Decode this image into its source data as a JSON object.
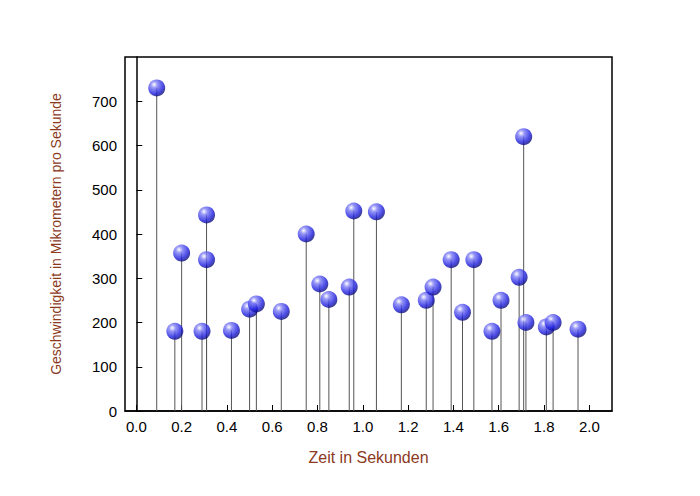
{
  "chart_data": {
    "type": "stem",
    "x_label": "Zeit in Sekunden",
    "y_label": "Geschwindigkeit in Mikrometern pro Sekunde",
    "x": [
      0.09,
      0.17,
      0.2,
      0.29,
      0.31,
      0.31,
      0.42,
      0.5,
      0.53,
      0.64,
      0.75,
      0.81,
      0.85,
      0.94,
      0.96,
      1.06,
      1.17,
      1.28,
      1.31,
      1.39,
      1.44,
      1.49,
      1.57,
      1.61,
      1.69,
      1.71,
      1.72,
      1.81,
      1.84,
      1.95
    ],
    "values": [
      730,
      180,
      357,
      180,
      443,
      342,
      182,
      230,
      242,
      225,
      400,
      287,
      252,
      280,
      452,
      450,
      240,
      250,
      280,
      342,
      223,
      342,
      180,
      250,
      302,
      620,
      200,
      190,
      200,
      185
    ],
    "color": "#1e1ee0",
    "marker": "sphere",
    "line_style": "solid",
    "grid": false,
    "xlim": [
      -0.05,
      2.1
    ],
    "xticks": [
      {
        "value": 0,
        "label": "0.0"
      },
      {
        "value": 0.2,
        "label": "0.2"
      },
      {
        "value": 0.4,
        "label": "0.4"
      },
      {
        "value": 0.6,
        "label": "0.6"
      },
      {
        "value": 0.8,
        "label": "0.8"
      },
      {
        "value": 1,
        "label": "1.0"
      },
      {
        "value": 1.2,
        "label": "1.2"
      },
      {
        "value": 1.4,
        "label": "1.4"
      },
      {
        "value": 1.6,
        "label": "1.6"
      },
      {
        "value": 1.8,
        "label": "1.8"
      },
      {
        "value": 2,
        "label": "2.0"
      }
    ],
    "ylim": [
      0,
      800
    ],
    "yticks": [
      0,
      100,
      200,
      300,
      400,
      500,
      600,
      700
    ]
  }
}
